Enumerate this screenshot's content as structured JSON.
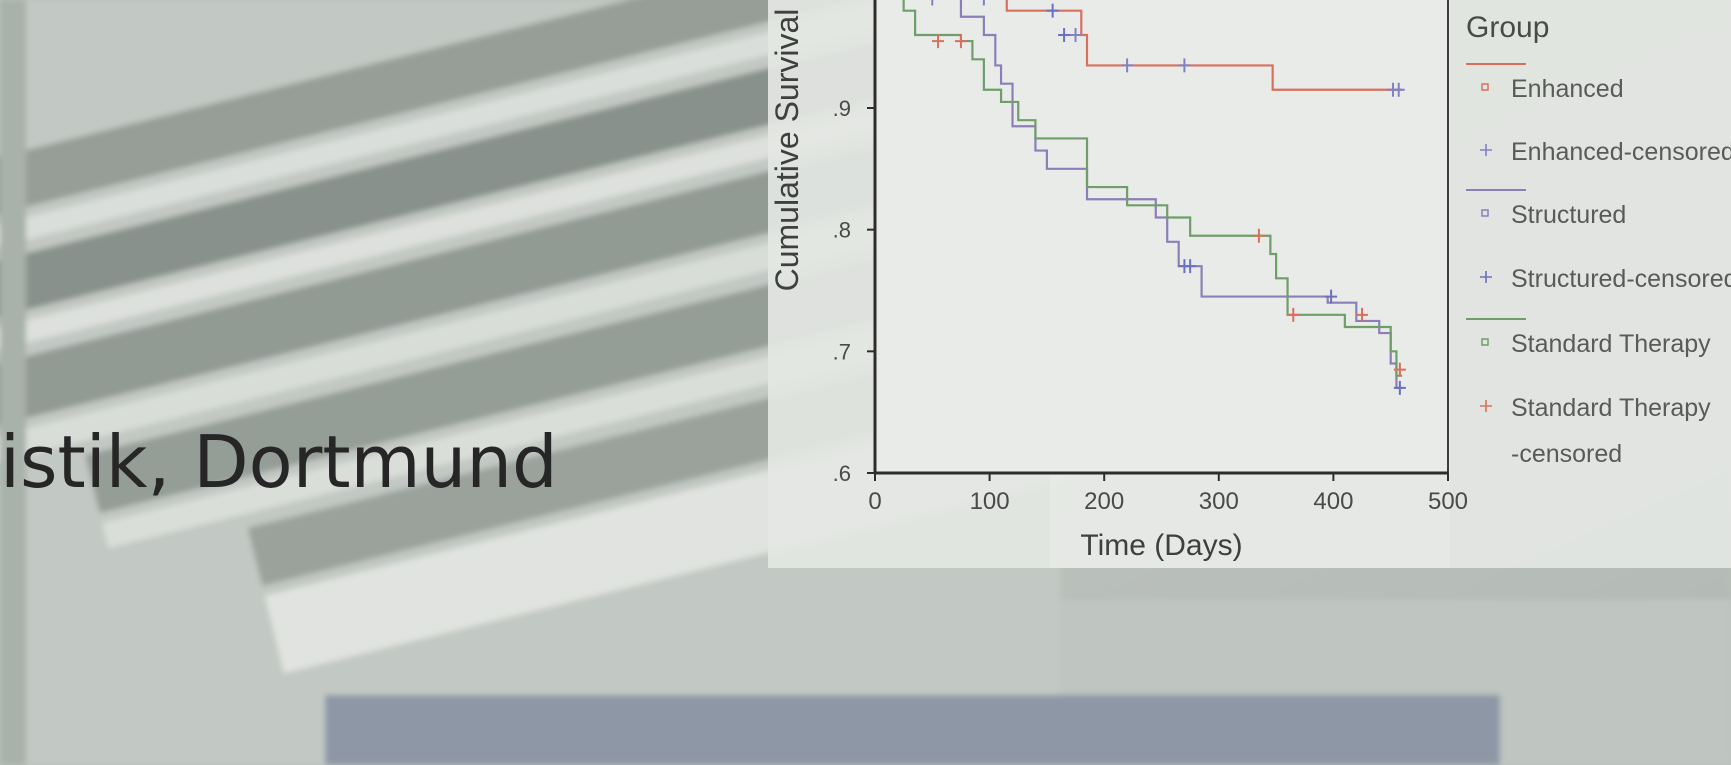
{
  "heading": {
    "text": "istik, Dortmund"
  },
  "chart_data": {
    "type": "line",
    "title": "",
    "xlabel": "Time (Days)",
    "ylabel": "Cumulative Survival",
    "xlim": [
      0,
      500
    ],
    "ylim": [
      0.6,
      1.0
    ],
    "x_ticks": [
      "0",
      "100",
      "200",
      "300",
      "400",
      "500"
    ],
    "y_ticks": [
      ".6",
      ".7",
      ".8",
      ".9"
    ],
    "y_tick_values": [
      0.6,
      0.7,
      0.8,
      0.9
    ],
    "grid": false,
    "legend_position": "right",
    "legend_title": "Group",
    "legend": [
      {
        "label": "Enhanced",
        "color": "#d9705e",
        "marker": "square"
      },
      {
        "label": "Enhanced-censored",
        "color": "#7f82c4",
        "marker": "plus"
      },
      {
        "label": "Structured",
        "color": "#8c7fb8",
        "marker": "square"
      },
      {
        "label": "Structured-censored",
        "color": "#6a72c0",
        "marker": "plus"
      },
      {
        "label": "Standard Therapy",
        "color": "#6f9e6a",
        "marker": "square"
      },
      {
        "label": "Standard Therapy",
        "label2": "-censored",
        "color": "#d9705e",
        "marker": "plus"
      }
    ],
    "series": [
      {
        "name": "Enhanced",
        "color": "#d9705e",
        "steps": [
          [
            0,
            1.0
          ],
          [
            40,
            0.99
          ],
          [
            115,
            0.98
          ],
          [
            180,
            0.96
          ],
          [
            185,
            0.935
          ],
          [
            345,
            0.935
          ],
          [
            347,
            0.915
          ],
          [
            460,
            0.915
          ]
        ],
        "censored": [
          [
            50,
            0.99
          ],
          [
            95,
            0.99
          ],
          [
            175,
            0.96
          ],
          [
            220,
            0.935
          ],
          [
            270,
            0.935
          ],
          [
            452,
            0.915
          ],
          [
            457,
            0.915
          ]
        ],
        "censored_color": "#7f82c4"
      },
      {
        "name": "Structured",
        "color": "#8c7fb8",
        "steps": [
          [
            0,
            1.0
          ],
          [
            30,
            0.99
          ],
          [
            75,
            0.975
          ],
          [
            95,
            0.96
          ],
          [
            105,
            0.935
          ],
          [
            110,
            0.92
          ],
          [
            120,
            0.885
          ],
          [
            140,
            0.865
          ],
          [
            150,
            0.85
          ],
          [
            180,
            0.85
          ],
          [
            185,
            0.825
          ],
          [
            240,
            0.825
          ],
          [
            245,
            0.81
          ],
          [
            255,
            0.79
          ],
          [
            265,
            0.77
          ],
          [
            285,
            0.745
          ],
          [
            380,
            0.745
          ],
          [
            395,
            0.74
          ],
          [
            420,
            0.725
          ],
          [
            440,
            0.715
          ],
          [
            450,
            0.69
          ],
          [
            455,
            0.67
          ],
          [
            460,
            0.67
          ]
        ],
        "censored": [
          [
            60,
            0.995
          ],
          [
            155,
            0.98
          ],
          [
            165,
            0.96
          ],
          [
            270,
            0.77
          ],
          [
            275,
            0.77
          ],
          [
            398,
            0.745
          ],
          [
            458,
            0.67
          ]
        ],
        "censored_color": "#6a72c0"
      },
      {
        "name": "Standard Therapy",
        "color": "#6f9e6a",
        "steps": [
          [
            0,
            1.0
          ],
          [
            15,
            1.0
          ],
          [
            25,
            0.98
          ],
          [
            35,
            0.96
          ],
          [
            75,
            0.955
          ],
          [
            85,
            0.94
          ],
          [
            95,
            0.915
          ],
          [
            110,
            0.905
          ],
          [
            125,
            0.89
          ],
          [
            140,
            0.875
          ],
          [
            180,
            0.875
          ],
          [
            185,
            0.835
          ],
          [
            220,
            0.82
          ],
          [
            255,
            0.81
          ],
          [
            270,
            0.81
          ],
          [
            275,
            0.795
          ],
          [
            330,
            0.795
          ],
          [
            345,
            0.78
          ],
          [
            350,
            0.76
          ],
          [
            360,
            0.73
          ],
          [
            400,
            0.73
          ],
          [
            410,
            0.72
          ],
          [
            440,
            0.72
          ],
          [
            450,
            0.7
          ],
          [
            455,
            0.68
          ],
          [
            460,
            0.68
          ]
        ],
        "censored": [
          [
            55,
            0.955
          ],
          [
            75,
            0.955
          ],
          [
            335,
            0.795
          ],
          [
            365,
            0.73
          ],
          [
            425,
            0.73
          ],
          [
            458,
            0.685
          ]
        ],
        "censored_color": "#d9705e"
      }
    ]
  }
}
